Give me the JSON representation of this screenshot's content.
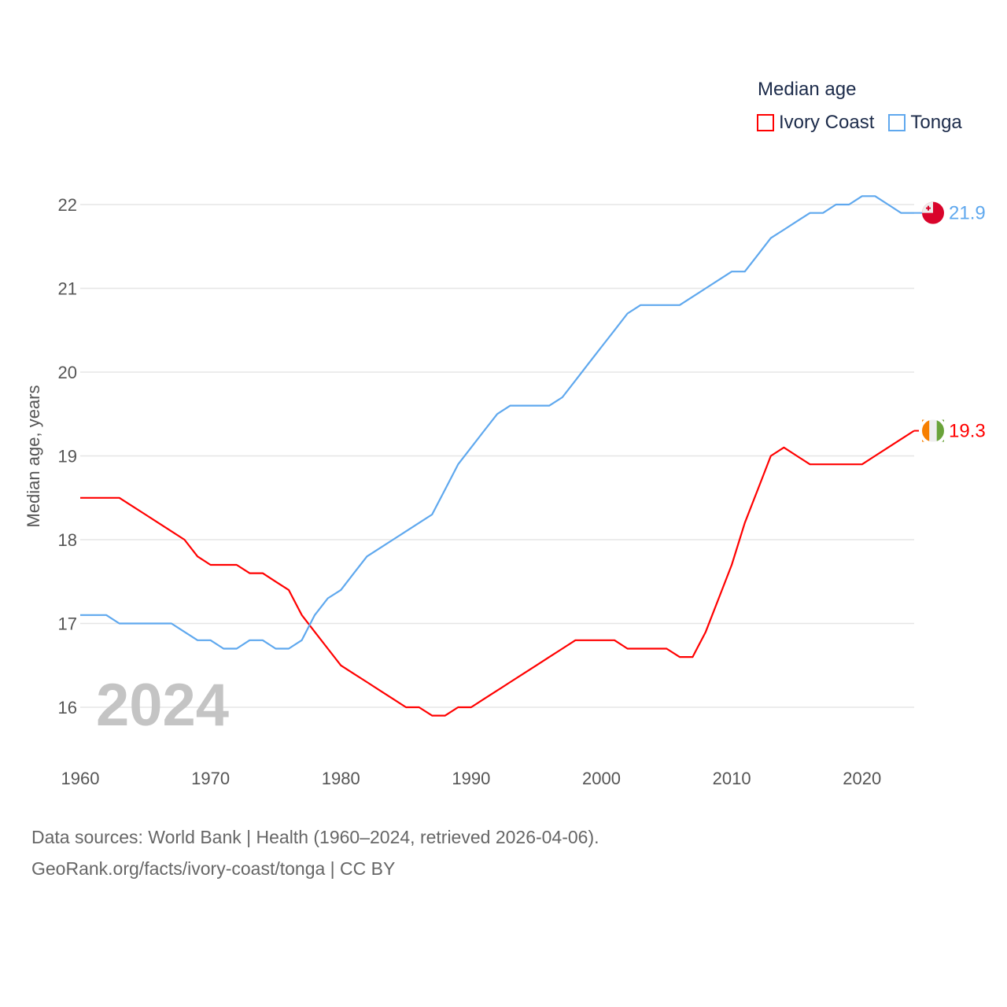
{
  "chart_data": {
    "type": "line",
    "title": "Median age",
    "xlabel": "",
    "ylabel": "Median age, years",
    "xlim": [
      1960,
      2024
    ],
    "ylim": [
      15.5,
      22.3
    ],
    "grid": true,
    "legend_position": "top-right",
    "year_label": "2024",
    "x_ticks": [
      "1960",
      "1970",
      "1980",
      "1990",
      "2000",
      "2010",
      "2020"
    ],
    "y_ticks": [
      "16",
      "17",
      "18",
      "19",
      "20",
      "21",
      "22"
    ],
    "x": [
      1960,
      1961,
      1962,
      1963,
      1964,
      1965,
      1966,
      1967,
      1968,
      1969,
      1970,
      1971,
      1972,
      1973,
      1974,
      1975,
      1976,
      1977,
      1978,
      1979,
      1980,
      1981,
      1982,
      1983,
      1984,
      1985,
      1986,
      1987,
      1988,
      1989,
      1990,
      1991,
      1992,
      1993,
      1994,
      1995,
      1996,
      1997,
      1998,
      1999,
      2000,
      2001,
      2002,
      2003,
      2004,
      2005,
      2006,
      2007,
      2008,
      2009,
      2010,
      2011,
      2012,
      2013,
      2014,
      2015,
      2016,
      2017,
      2018,
      2019,
      2020,
      2021,
      2022,
      2023,
      2024
    ],
    "series": [
      {
        "name": "Ivory Coast",
        "color": "#ff0000",
        "end_label": "19.3",
        "values": [
          18.5,
          18.5,
          18.5,
          18.5,
          18.4,
          18.3,
          18.2,
          18.1,
          18.0,
          17.8,
          17.7,
          17.7,
          17.7,
          17.6,
          17.6,
          17.5,
          17.4,
          17.1,
          16.9,
          16.7,
          16.5,
          16.4,
          16.3,
          16.2,
          16.1,
          16.0,
          16.0,
          15.9,
          15.9,
          16.0,
          16.0,
          16.1,
          16.2,
          16.3,
          16.4,
          16.5,
          16.6,
          16.7,
          16.8,
          16.8,
          16.8,
          16.8,
          16.7,
          16.7,
          16.7,
          16.7,
          16.6,
          16.6,
          16.9,
          17.3,
          17.7,
          18.2,
          18.6,
          19.0,
          19.1,
          19.0,
          18.9,
          18.9,
          18.9,
          18.9,
          18.9,
          19.0,
          19.1,
          19.2,
          19.3
        ]
      },
      {
        "name": "Tonga",
        "color": "#5fa8ee",
        "end_label": "21.9",
        "values": [
          17.1,
          17.1,
          17.1,
          17.0,
          17.0,
          17.0,
          17.0,
          17.0,
          16.9,
          16.8,
          16.8,
          16.7,
          16.7,
          16.8,
          16.8,
          16.7,
          16.7,
          16.8,
          17.1,
          17.3,
          17.4,
          17.6,
          17.8,
          17.9,
          18.0,
          18.1,
          18.2,
          18.3,
          18.6,
          18.9,
          19.1,
          19.3,
          19.5,
          19.6,
          19.6,
          19.6,
          19.6,
          19.7,
          19.9,
          20.1,
          20.3,
          20.5,
          20.7,
          20.8,
          20.8,
          20.8,
          20.8,
          20.9,
          21.0,
          21.1,
          21.2,
          21.2,
          21.4,
          21.6,
          21.7,
          21.8,
          21.9,
          21.9,
          22.0,
          22.0,
          22.1,
          22.1,
          22.0,
          21.9,
          21.9
        ]
      }
    ]
  },
  "footer": {
    "line1": "Data sources: World Bank | Health (1960–2024, retrieved 2026-04-06).",
    "line2": "GeoRank.org/facts/ivory-coast/tonga | CC BY"
  }
}
